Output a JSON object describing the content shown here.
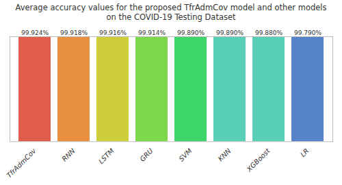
{
  "chart_data": {
    "type": "bar",
    "title": "Average accuracy values for the proposed TfrAdmCov model and other models\non the COVID-19 Testing Dataset",
    "categories": [
      "TfrAdmCov",
      "RNN",
      "LSTM",
      "GRU",
      "SVM",
      "KNN",
      "XGBoost",
      "LR"
    ],
    "values": [
      99.924,
      99.918,
      99.916,
      99.914,
      99.89,
      99.89,
      99.88,
      99.79
    ],
    "value_labels": [
      "99.924%",
      "99.918%",
      "99.916%",
      "99.914%",
      "99.890%",
      "99.890%",
      "99.880%",
      "99.790%"
    ],
    "colors": [
      "#E05C4B",
      "#E89040",
      "#CECE3A",
      "#7ED94A",
      "#3DD46A",
      "#5ACFB8",
      "#5ACFB8",
      "#5585C8"
    ],
    "ylim": [
      0,
      100
    ],
    "grid": false,
    "data_labels": true,
    "tick_labels": "x"
  }
}
